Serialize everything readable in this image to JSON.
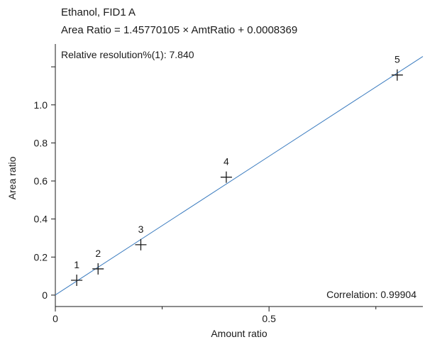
{
  "header": {
    "title": "Ethanol, FID1 A",
    "equation": "Area Ratio = 1.45770105 × AmtRatio + 0.0008369"
  },
  "annotations": {
    "resolution": "Relative resolution%(1): 7.840",
    "correlation": "Correlation: 0.99904"
  },
  "chart_data": {
    "type": "scatter",
    "title": "Ethanol, FID1 A",
    "subtitle": "Area Ratio = 1.45770105 × AmtRatio + 0.0008369",
    "xlabel": "Amount ratio",
    "ylabel": "Area ratio",
    "xlim": [
      0,
      0.86
    ],
    "ylim": [
      -0.06,
      1.32
    ],
    "x_ticks": [
      {
        "value": 0,
        "label": "0"
      },
      {
        "value": 0.5,
        "label": "0.5"
      }
    ],
    "x_minor_ticks": [
      0.25,
      0.75
    ],
    "y_ticks": [
      {
        "value": 0,
        "label": "0"
      },
      {
        "value": 0.2,
        "label": "0.2"
      },
      {
        "value": 0.4,
        "label": "0.4"
      },
      {
        "value": 0.6,
        "label": "0.6"
      },
      {
        "value": 0.8,
        "label": "0.8"
      },
      {
        "value": 1.0,
        "label": "1.0"
      },
      {
        "value": 1.2,
        "label": ""
      }
    ],
    "fit": {
      "slope": 1.45770105,
      "intercept": 0.0008369,
      "color": "#3a7bbf"
    },
    "points": [
      {
        "label": "1",
        "x": 0.05,
        "y": 0.078
      },
      {
        "label": "2",
        "x": 0.1,
        "y": 0.138
      },
      {
        "label": "3",
        "x": 0.2,
        "y": 0.265
      },
      {
        "label": "4",
        "x": 0.4,
        "y": 0.62
      },
      {
        "label": "5",
        "x": 0.8,
        "y": 1.157
      }
    ],
    "grid": false,
    "marker": "plus",
    "marker_color": "#1a1a1a",
    "axis_color": "#1a1a1a"
  }
}
